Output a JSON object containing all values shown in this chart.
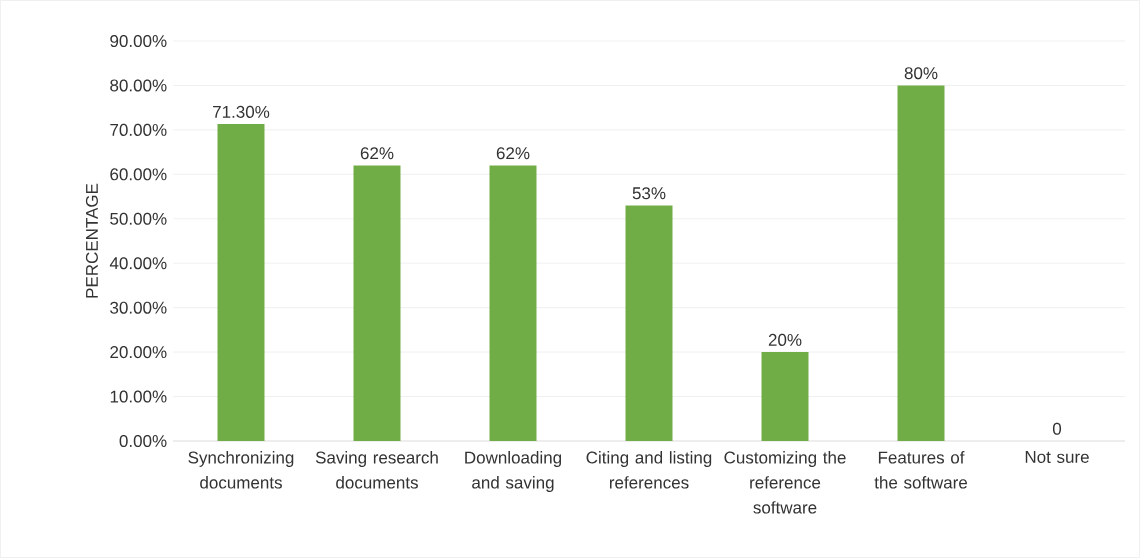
{
  "chart_data": {
    "type": "bar",
    "ylabel": "PERCENTAGE",
    "categories": [
      "Synchronizing documents",
      "Saving research documents",
      "Downloading and saving",
      "Citing and listing references",
      "Customizing the reference software",
      "Features of the software",
      "Not sure"
    ],
    "values": [
      71.3,
      62,
      62,
      53,
      20,
      80,
      0
    ],
    "value_labels": [
      "71.30%",
      "62%",
      "62%",
      "53%",
      "20%",
      "80%",
      "0"
    ],
    "color": "#70ad47",
    "ylim": [
      0,
      90
    ],
    "yticks": [
      {
        "value": 0,
        "label": "0.00%"
      },
      {
        "value": 10,
        "label": "10.00%"
      },
      {
        "value": 20,
        "label": "20.00%"
      },
      {
        "value": 30,
        "label": "30.00%"
      },
      {
        "value": 40,
        "label": "40.00%"
      },
      {
        "value": 50,
        "label": "50.00%"
      },
      {
        "value": 60,
        "label": "60.00%"
      },
      {
        "value": 70,
        "label": "70.00%"
      },
      {
        "value": 80,
        "label": "80.00%"
      },
      {
        "value": 90,
        "label": "90.00%"
      }
    ],
    "grid": "y"
  }
}
